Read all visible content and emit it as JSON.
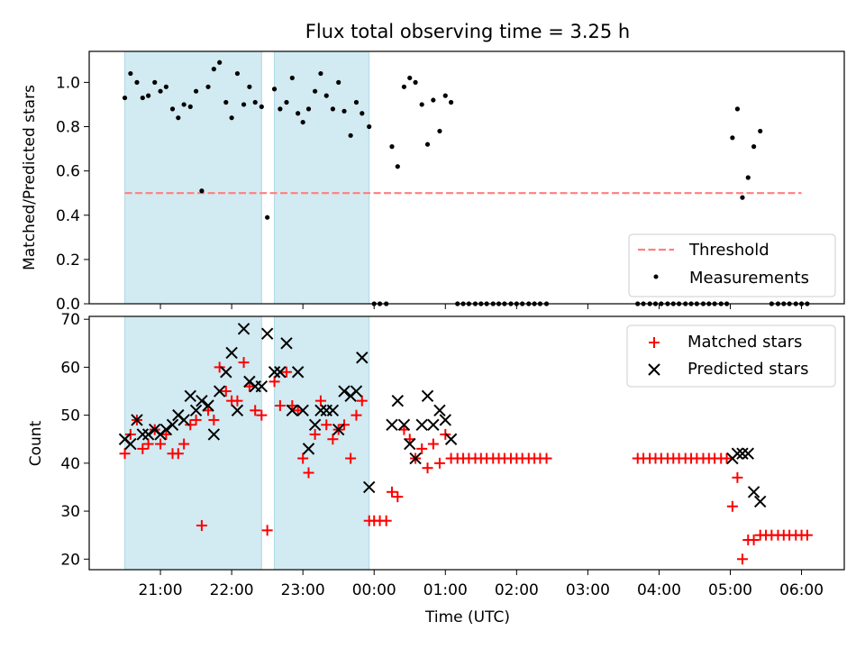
{
  "figure": {
    "title": "Flux total observing time = 3.25 h",
    "xlabel": "Time (UTC)",
    "x_tick_labels": [
      "21:00",
      "22:00",
      "23:00",
      "00:00",
      "01:00",
      "02:00",
      "03:00",
      "04:00",
      "05:00",
      "06:00"
    ]
  },
  "colors": {
    "shade": "#add8e6",
    "threshold": "#ff7f7f",
    "measurement": "#000000",
    "matched": "#ff0000",
    "predicted": "#000000"
  },
  "chart_data": [
    {
      "type": "scatter",
      "panel": "top",
      "title": "Flux total observing time = 3.25 h",
      "xlabel": "",
      "ylabel": "Matched/Predicted stars",
      "x_unit": "hours since 21:00 UTC",
      "xlim": [
        -1.0,
        9.6
      ],
      "ylim": [
        0.0,
        1.14
      ],
      "yticks": [
        0.0,
        0.2,
        0.4,
        0.6,
        0.8,
        1.0
      ],
      "y_tick_labels": [
        "0.0",
        "0.2",
        "0.4",
        "0.6",
        "0.8",
        "1.0"
      ],
      "shaded_intervals": [
        [
          -0.5,
          1.42
        ],
        [
          1.6,
          2.93
        ]
      ],
      "threshold": {
        "label": "Threshold",
        "value": 0.5,
        "x_range": [
          -0.5,
          9.0
        ]
      },
      "legend": {
        "placement": "lower-right",
        "entries": [
          "Threshold",
          "Measurements"
        ]
      },
      "series": [
        {
          "name": "Measurements",
          "points": [
            [
              -0.5,
              0.93
            ],
            [
              -0.42,
              1.04
            ],
            [
              -0.33,
              1.0
            ],
            [
              -0.25,
              0.93
            ],
            [
              -0.17,
              0.94
            ],
            [
              -0.08,
              1.0
            ],
            [
              0.0,
              0.96
            ],
            [
              0.08,
              0.98
            ],
            [
              0.17,
              0.88
            ],
            [
              0.25,
              0.84
            ],
            [
              0.33,
              0.9
            ],
            [
              0.42,
              0.89
            ],
            [
              0.5,
              0.96
            ],
            [
              0.58,
              0.51
            ],
            [
              0.67,
              0.98
            ],
            [
              0.75,
              1.06
            ],
            [
              0.83,
              1.09
            ],
            [
              0.92,
              0.91
            ],
            [
              1.0,
              0.84
            ],
            [
              1.08,
              1.04
            ],
            [
              1.17,
              0.9
            ],
            [
              1.25,
              0.98
            ],
            [
              1.33,
              0.91
            ],
            [
              1.42,
              0.89
            ],
            [
              1.5,
              0.39
            ],
            [
              1.6,
              0.97
            ],
            [
              1.68,
              0.88
            ],
            [
              1.77,
              0.91
            ],
            [
              1.85,
              1.02
            ],
            [
              1.93,
              0.86
            ],
            [
              2.0,
              0.82
            ],
            [
              2.08,
              0.88
            ],
            [
              2.17,
              0.96
            ],
            [
              2.25,
              1.04
            ],
            [
              2.33,
              0.94
            ],
            [
              2.42,
              0.88
            ],
            [
              2.5,
              1.0
            ],
            [
              2.58,
              0.87
            ],
            [
              2.67,
              0.76
            ],
            [
              2.75,
              0.91
            ],
            [
              2.83,
              0.86
            ],
            [
              2.93,
              0.8
            ],
            [
              3.0,
              0.0
            ],
            [
              3.08,
              0.0
            ],
            [
              3.17,
              0.0
            ],
            [
              3.25,
              0.71
            ],
            [
              3.33,
              0.62
            ],
            [
              3.42,
              0.98
            ],
            [
              3.5,
              1.02
            ],
            [
              3.58,
              1.0
            ],
            [
              3.67,
              0.9
            ],
            [
              3.75,
              0.72
            ],
            [
              3.83,
              0.92
            ],
            [
              3.92,
              0.78
            ],
            [
              4.0,
              0.94
            ],
            [
              4.08,
              0.91
            ],
            [
              4.17,
              0.0
            ],
            [
              4.25,
              0.0
            ],
            [
              4.33,
              0.0
            ],
            [
              4.42,
              0.0
            ],
            [
              4.5,
              0.0
            ],
            [
              4.58,
              0.0
            ],
            [
              4.67,
              0.0
            ],
            [
              4.75,
              0.0
            ],
            [
              4.83,
              0.0
            ],
            [
              4.92,
              0.0
            ],
            [
              5.0,
              0.0
            ],
            [
              5.08,
              0.0
            ],
            [
              5.17,
              0.0
            ],
            [
              5.25,
              0.0
            ],
            [
              5.33,
              0.0
            ],
            [
              5.42,
              0.0
            ],
            [
              6.7,
              0.0
            ],
            [
              6.78,
              0.0
            ],
            [
              6.87,
              0.0
            ],
            [
              6.95,
              0.0
            ],
            [
              7.03,
              0.0
            ],
            [
              7.12,
              0.0
            ],
            [
              7.2,
              0.0
            ],
            [
              7.28,
              0.0
            ],
            [
              7.37,
              0.0
            ],
            [
              7.45,
              0.0
            ],
            [
              7.53,
              0.0
            ],
            [
              7.62,
              0.0
            ],
            [
              7.7,
              0.0
            ],
            [
              7.78,
              0.0
            ],
            [
              7.87,
              0.0
            ],
            [
              7.95,
              0.0
            ],
            [
              8.03,
              0.75
            ],
            [
              8.1,
              0.88
            ],
            [
              8.17,
              0.48
            ],
            [
              8.25,
              0.57
            ],
            [
              8.33,
              0.71
            ],
            [
              8.42,
              0.78
            ],
            [
              8.58,
              0.0
            ],
            [
              8.67,
              0.0
            ],
            [
              8.75,
              0.0
            ],
            [
              8.83,
              0.0
            ],
            [
              8.92,
              0.0
            ],
            [
              9.0,
              0.0
            ],
            [
              9.08,
              0.0
            ]
          ]
        }
      ]
    },
    {
      "type": "scatter",
      "panel": "bottom",
      "title": "",
      "xlabel": "Time (UTC)",
      "ylabel": "Count",
      "x_unit": "hours since 21:00 UTC",
      "xlim": [
        -1.0,
        9.6
      ],
      "ylim": [
        17.8,
        70.6
      ],
      "yticks": [
        20,
        30,
        40,
        50,
        60,
        70
      ],
      "y_tick_labels": [
        "20",
        "30",
        "40",
        "50",
        "60",
        "70"
      ],
      "shaded_intervals": [
        [
          -0.5,
          1.42
        ],
        [
          1.6,
          2.93
        ]
      ],
      "legend": {
        "placement": "top-right",
        "entries": [
          "Matched stars",
          "Predicted stars"
        ]
      },
      "series": [
        {
          "name": "Matched stars",
          "marker": "plus",
          "points": [
            [
              -0.5,
              42
            ],
            [
              -0.42,
              46
            ],
            [
              -0.33,
              49
            ],
            [
              -0.25,
              43
            ],
            [
              -0.17,
              44
            ],
            [
              -0.08,
              47
            ],
            [
              0.0,
              44
            ],
            [
              0.08,
              46
            ],
            [
              0.17,
              42
            ],
            [
              0.25,
              42
            ],
            [
              0.33,
              44
            ],
            [
              0.42,
              48
            ],
            [
              0.5,
              49
            ],
            [
              0.58,
              27
            ],
            [
              0.67,
              51
            ],
            [
              0.75,
              49
            ],
            [
              0.83,
              60
            ],
            [
              0.92,
              55
            ],
            [
              1.0,
              53
            ],
            [
              1.08,
              53
            ],
            [
              1.17,
              61
            ],
            [
              1.25,
              56
            ],
            [
              1.33,
              51
            ],
            [
              1.42,
              50
            ],
            [
              1.5,
              26
            ],
            [
              1.6,
              57
            ],
            [
              1.68,
              52
            ],
            [
              1.77,
              59
            ],
            [
              1.85,
              52
            ],
            [
              1.93,
              51
            ],
            [
              2.0,
              41
            ],
            [
              2.08,
              38
            ],
            [
              2.17,
              46
            ],
            [
              2.25,
              53
            ],
            [
              2.33,
              48
            ],
            [
              2.42,
              45
            ],
            [
              2.5,
              47
            ],
            [
              2.58,
              48
            ],
            [
              2.67,
              41
            ],
            [
              2.75,
              50
            ],
            [
              2.83,
              53
            ],
            [
              2.93,
              28
            ],
            [
              3.0,
              28
            ],
            [
              3.08,
              28
            ],
            [
              3.17,
              28
            ],
            [
              3.25,
              34
            ],
            [
              3.33,
              33
            ],
            [
              3.42,
              47
            ],
            [
              3.5,
              45
            ],
            [
              3.58,
              41
            ],
            [
              3.67,
              43
            ],
            [
              3.75,
              39
            ],
            [
              3.83,
              44
            ],
            [
              3.92,
              40
            ],
            [
              4.0,
              46
            ],
            [
              4.08,
              41
            ],
            [
              4.17,
              41
            ],
            [
              4.25,
              41
            ],
            [
              4.33,
              41
            ],
            [
              4.42,
              41
            ],
            [
              4.5,
              41
            ],
            [
              4.58,
              41
            ],
            [
              4.67,
              41
            ],
            [
              4.75,
              41
            ],
            [
              4.83,
              41
            ],
            [
              4.92,
              41
            ],
            [
              5.0,
              41
            ],
            [
              5.08,
              41
            ],
            [
              5.17,
              41
            ],
            [
              5.25,
              41
            ],
            [
              5.33,
              41
            ],
            [
              5.42,
              41
            ],
            [
              6.7,
              41
            ],
            [
              6.78,
              41
            ],
            [
              6.87,
              41
            ],
            [
              6.95,
              41
            ],
            [
              7.03,
              41
            ],
            [
              7.12,
              41
            ],
            [
              7.2,
              41
            ],
            [
              7.28,
              41
            ],
            [
              7.37,
              41
            ],
            [
              7.45,
              41
            ],
            [
              7.53,
              41
            ],
            [
              7.62,
              41
            ],
            [
              7.7,
              41
            ],
            [
              7.78,
              41
            ],
            [
              7.87,
              41
            ],
            [
              7.95,
              41
            ],
            [
              8.03,
              31
            ],
            [
              8.1,
              37
            ],
            [
              8.17,
              20
            ],
            [
              8.25,
              24
            ],
            [
              8.33,
              24
            ],
            [
              8.42,
              25
            ],
            [
              8.5,
              25
            ],
            [
              8.58,
              25
            ],
            [
              8.67,
              25
            ],
            [
              8.75,
              25
            ],
            [
              8.83,
              25
            ],
            [
              8.92,
              25
            ],
            [
              9.0,
              25
            ],
            [
              9.08,
              25
            ]
          ]
        },
        {
          "name": "Predicted stars",
          "marker": "x",
          "points": [
            [
              -0.5,
              45
            ],
            [
              -0.42,
              44
            ],
            [
              -0.33,
              49
            ],
            [
              -0.25,
              46
            ],
            [
              -0.17,
              46
            ],
            [
              -0.08,
              47
            ],
            [
              0.0,
              46
            ],
            [
              0.08,
              47
            ],
            [
              0.17,
              48
            ],
            [
              0.25,
              50
            ],
            [
              0.33,
              49
            ],
            [
              0.42,
              54
            ],
            [
              0.5,
              51
            ],
            [
              0.58,
              53
            ],
            [
              0.67,
              52
            ],
            [
              0.75,
              46
            ],
            [
              0.83,
              55
            ],
            [
              0.92,
              59
            ],
            [
              1.0,
              63
            ],
            [
              1.08,
              51
            ],
            [
              1.17,
              68
            ],
            [
              1.25,
              57
            ],
            [
              1.33,
              56
            ],
            [
              1.42,
              56
            ],
            [
              1.5,
              67
            ],
            [
              1.6,
              59
            ],
            [
              1.68,
              59
            ],
            [
              1.77,
              65
            ],
            [
              1.85,
              51
            ],
            [
              1.93,
              59
            ],
            [
              2.0,
              51
            ],
            [
              2.08,
              43
            ],
            [
              2.17,
              48
            ],
            [
              2.25,
              51
            ],
            [
              2.33,
              51
            ],
            [
              2.42,
              51
            ],
            [
              2.5,
              47
            ],
            [
              2.58,
              55
            ],
            [
              2.67,
              54
            ],
            [
              2.75,
              55
            ],
            [
              2.83,
              62
            ],
            [
              2.93,
              35
            ],
            [
              3.25,
              48
            ],
            [
              3.33,
              53
            ],
            [
              3.42,
              48
            ],
            [
              3.5,
              44
            ],
            [
              3.58,
              41
            ],
            [
              3.67,
              48
            ],
            [
              3.75,
              54
            ],
            [
              3.83,
              48
            ],
            [
              3.92,
              51
            ],
            [
              4.0,
              49
            ],
            [
              4.08,
              45
            ],
            [
              8.03,
              41
            ],
            [
              8.1,
              42
            ],
            [
              8.17,
              42
            ],
            [
              8.25,
              42
            ],
            [
              8.33,
              34
            ],
            [
              8.42,
              32
            ]
          ]
        }
      ]
    }
  ]
}
